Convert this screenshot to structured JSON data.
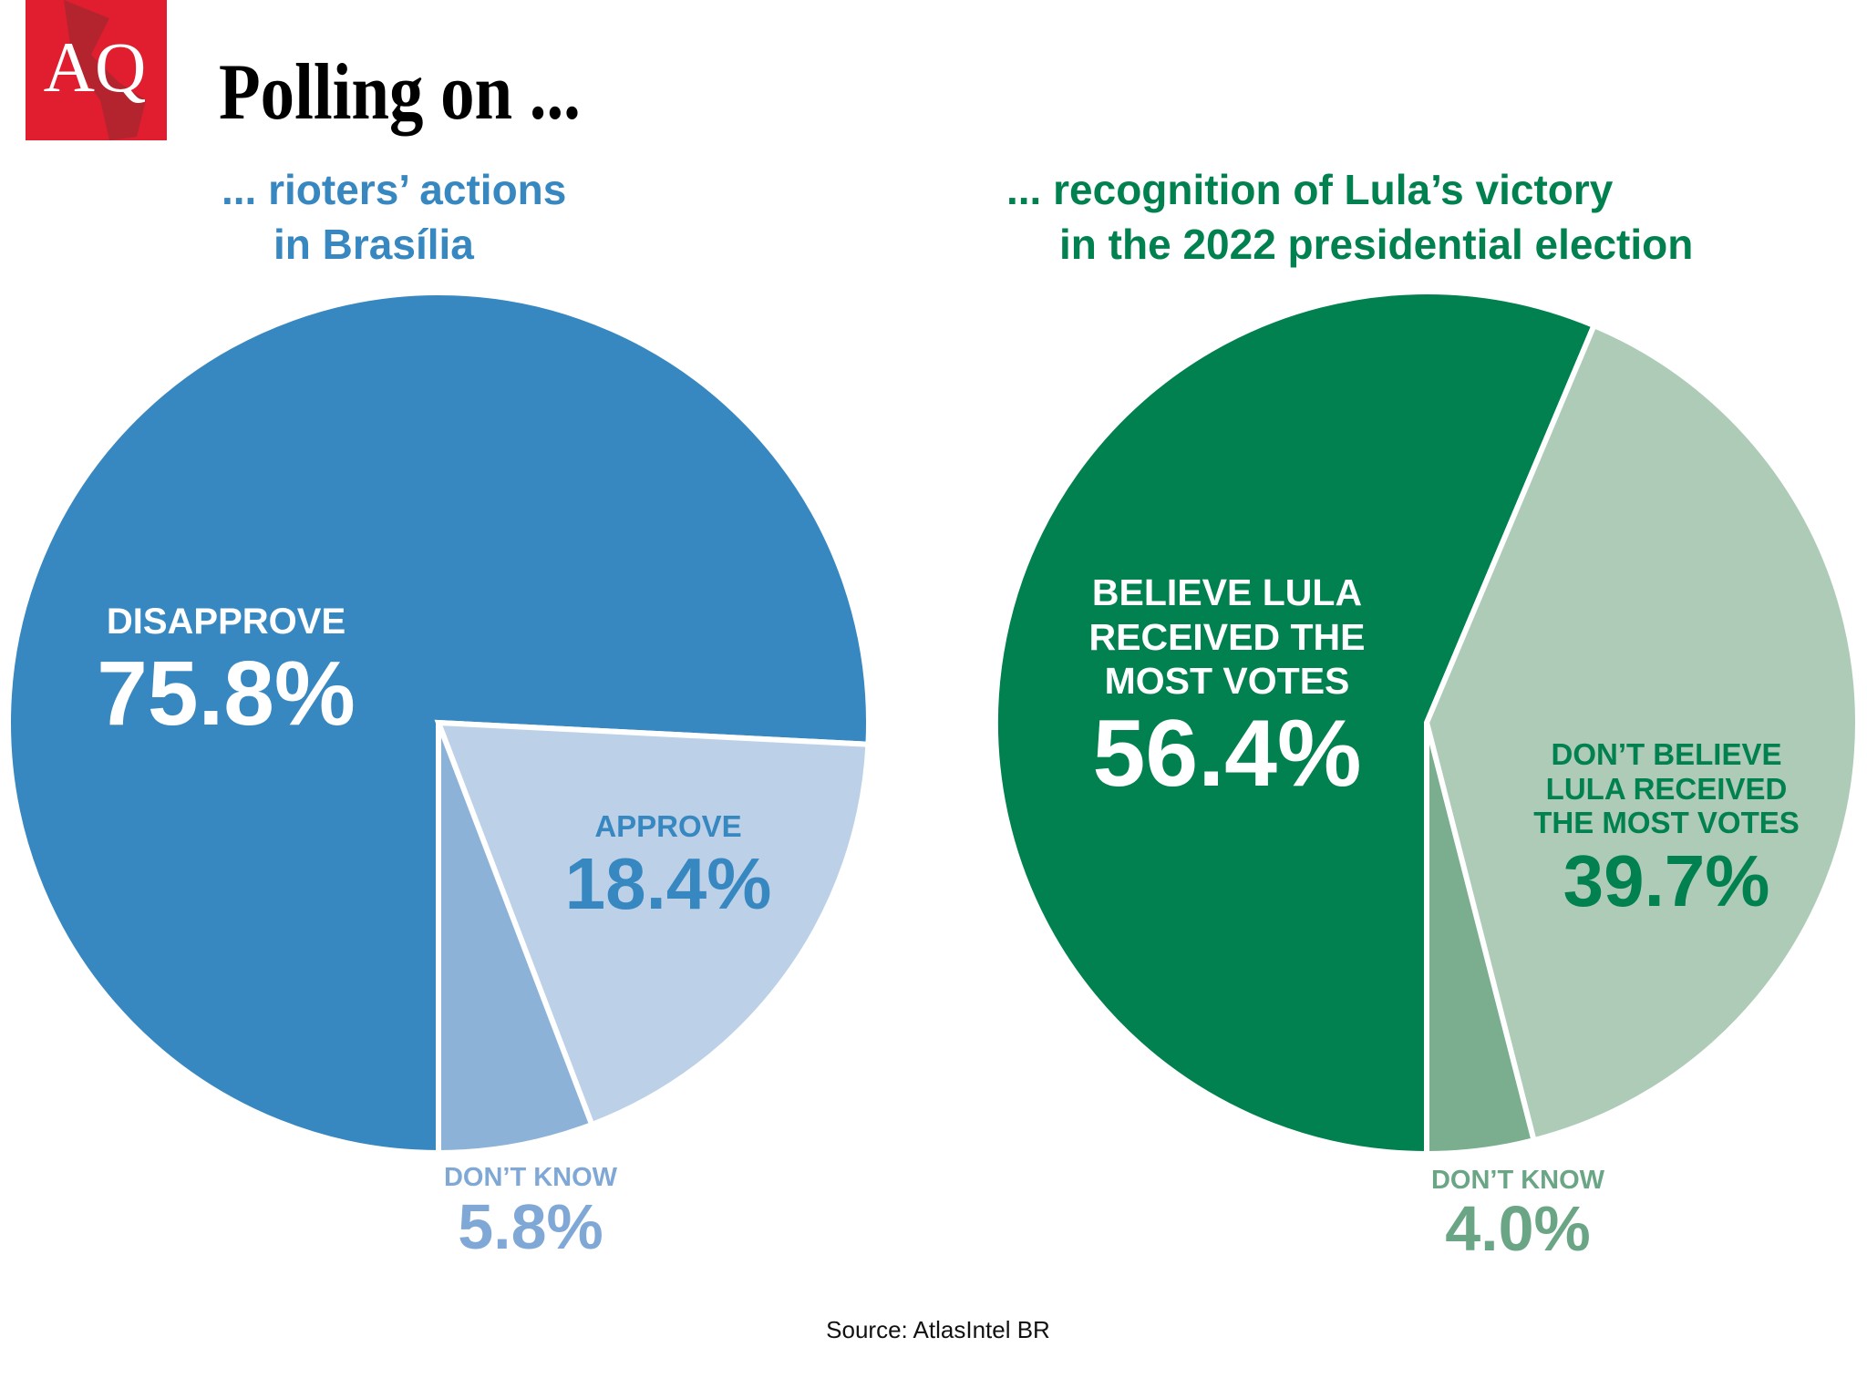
{
  "header": {
    "logo_text": "AQ",
    "title": "Polling on ..."
  },
  "source": "Source: AtlasIntel BR",
  "chart_data": [
    {
      "type": "pie",
      "title_lines": [
        "... rioters’ actions",
        "in Brasília"
      ],
      "title_color": "#3787c1",
      "slices": [
        {
          "label_lines": [
            "DISAPPROVE"
          ],
          "value": 75.8,
          "value_text": "75.8%",
          "color": "#3787c1",
          "label_color": "#ffffff"
        },
        {
          "label_lines": [
            "APPROVE"
          ],
          "value": 18.4,
          "value_text": "18.4%",
          "color": "#bcd1e8",
          "label_color": "#3787c1"
        },
        {
          "label_lines": [
            "DON’T KNOW"
          ],
          "value": 5.8,
          "value_text": "5.8%",
          "color": "#8db2d8",
          "label_color": "#7fa8d6"
        }
      ]
    },
    {
      "type": "pie",
      "title_lines": [
        "... recognition of Lula’s victory",
        "in the 2022 presidential election"
      ],
      "title_color": "#00814f",
      "slices": [
        {
          "label_lines": [
            "BELIEVE LULA",
            "RECEIVED THE",
            "MOST VOTES"
          ],
          "value": 56.4,
          "value_text": "56.4%",
          "color": "#00814f",
          "label_color": "#ffffff"
        },
        {
          "label_lines": [
            "DON’T BELIEVE",
            "LULA RECEIVED",
            "THE MOST VOTES"
          ],
          "value": 39.7,
          "value_text": "39.7%",
          "color": "#aecbb8",
          "label_color": "#00814f"
        },
        {
          "label_lines": [
            "DON’T KNOW"
          ],
          "value": 4.0,
          "value_text": "4.0%",
          "color": "#7aae8f",
          "label_color": "#6aa585"
        }
      ]
    }
  ]
}
